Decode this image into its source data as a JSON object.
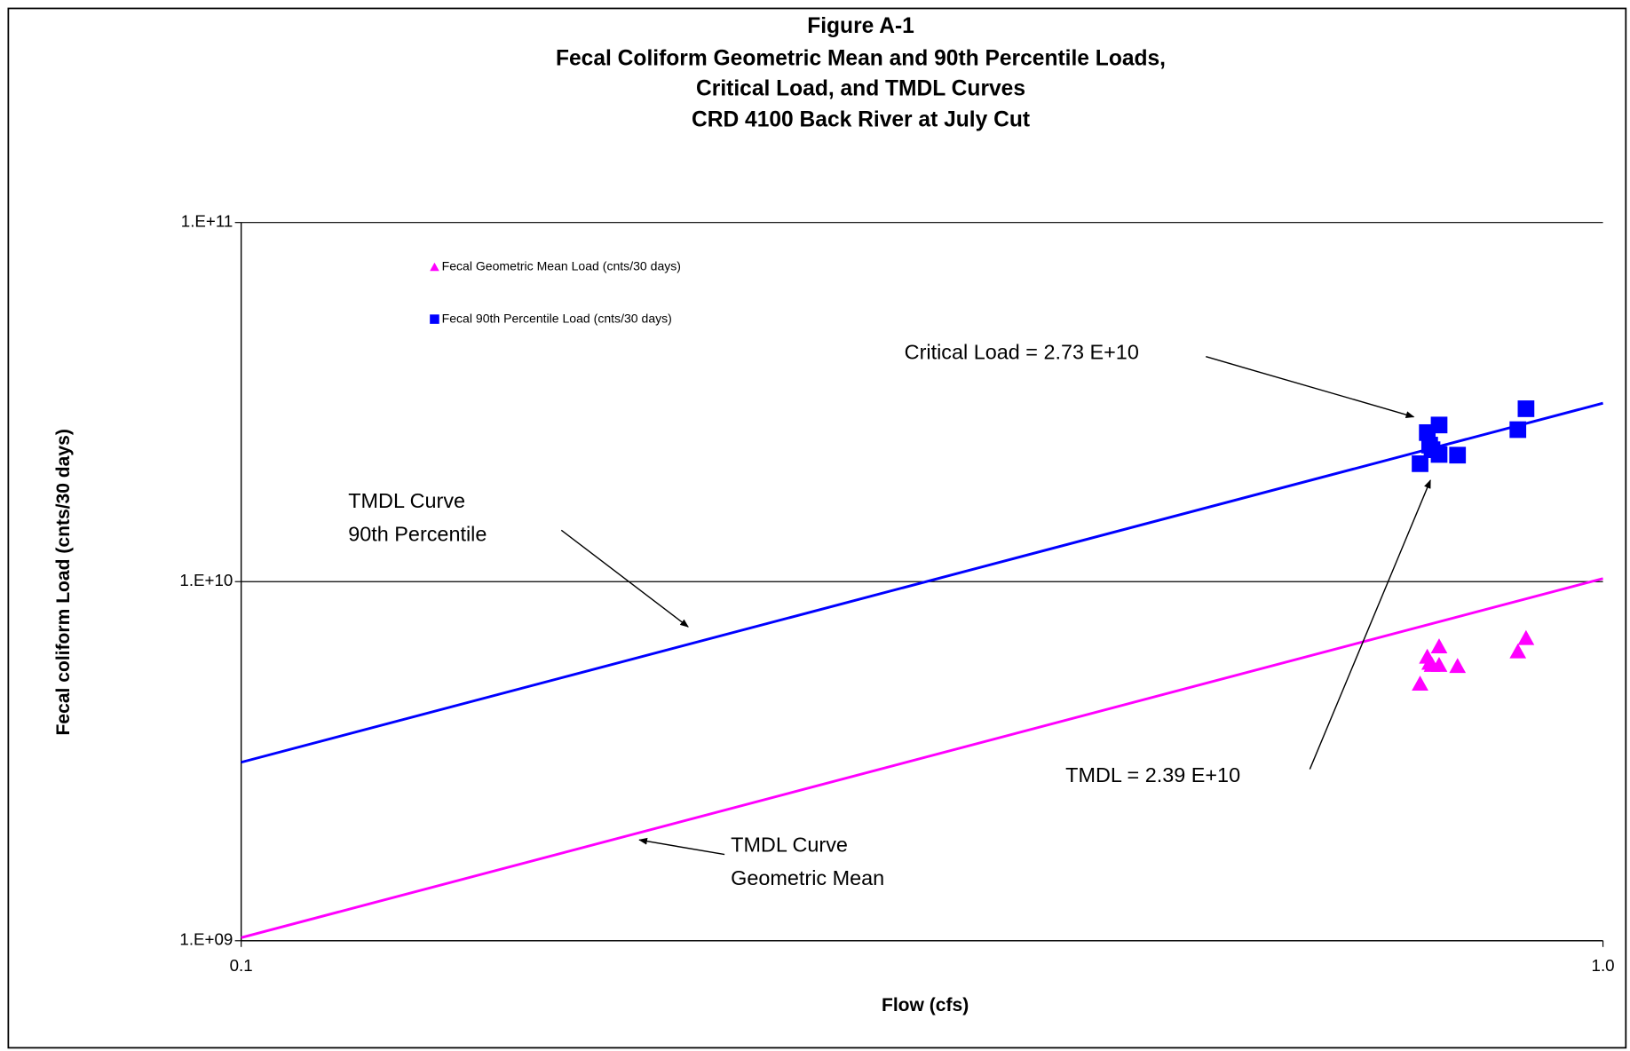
{
  "chart_data": {
    "type": "scatter",
    "title": [
      "Figure A-1",
      "Fecal Coliform Geometric Mean and 90th Percentile Loads,",
      "Critical Load, and TMDL Curves",
      "CRD 4100 Back River at July Cut"
    ],
    "x_label": "Flow  (cfs)",
    "y_label": "Fecal coliform Load  (cnts/30 days)",
    "xscale": "log",
    "yscale": "log",
    "xlim": [
      0.1,
      1.0
    ],
    "ylim": [
      1000000000,
      100000000000
    ],
    "xticks": [
      0.1,
      {
        "value": 1.0,
        "label": "1.0"
      }
    ],
    "yticks": [
      {
        "value": 1000000000,
        "label": "1.E+09"
      },
      {
        "value": 10000000000,
        "label": "1.E+10"
      },
      {
        "value": 100000000000,
        "label": "1.E+11"
      }
    ],
    "grid": true,
    "legend": "upper left",
    "series": [
      {
        "name": "Fecal Geometric Mean Load (cnts/30 days)",
        "color": "#ff00ff",
        "marker": "triangle",
        "x": [
          0.734,
          0.743,
          0.746,
          0.758,
          0.758,
          0.749,
          0.782,
          0.866,
          0.878
        ],
        "values": [
          5190000000,
          6170000000,
          5930000000,
          6590000000,
          5850000000,
          5850000000,
          5810000000,
          6380000000,
          6950000000
        ]
      },
      {
        "name": "Fecal 90th Percentile Load (cnts/30 days)",
        "color": "#0000ff",
        "marker": "square",
        "x": [
          0.734,
          0.743,
          0.746,
          0.758,
          0.758,
          0.749,
          0.782,
          0.866,
          0.878
        ],
        "values": [
          21300000000,
          26000000000,
          24000000000,
          27300000000,
          22600000000,
          23300000000,
          22500000000,
          26500000000,
          30300000000
        ]
      }
    ],
    "lines": [
      {
        "color": "#0000ff",
        "x": [
          0.1,
          1.0
        ],
        "values": [
          3140000000,
          31400000000
        ]
      },
      {
        "color": "#ff00ff",
        "x": [
          0.1,
          1.0
        ],
        "values": [
          1020000000,
          10200000000
        ]
      }
    ],
    "annotations": [
      {
        "lines": [
          "Critical Load = 2.73 E+10"
        ]
      },
      {
        "lines": [
          "TMDL Curve",
          "90th Percentile"
        ]
      },
      {
        "lines": [
          "TMDL  = 2.39 E+10"
        ]
      },
      {
        "lines": [
          "TMDL Curve",
          "Geometric Mean"
        ]
      }
    ]
  }
}
